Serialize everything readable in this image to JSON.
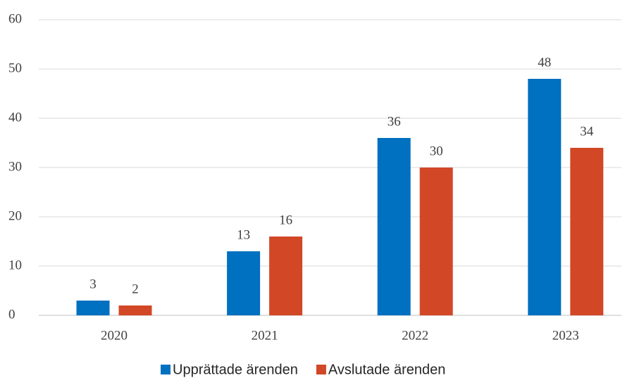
{
  "chart_data": {
    "type": "bar",
    "categories": [
      "2020",
      "2021",
      "2022",
      "2023"
    ],
    "series": [
      {
        "name": "Upprättade ärenden",
        "color": "#0070c0",
        "values": [
          3,
          13,
          36,
          48
        ]
      },
      {
        "name": "Avslutade ärenden",
        "color": "#d24726",
        "values": [
          2,
          16,
          30,
          34
        ]
      }
    ],
    "ylim": [
      0,
      60
    ],
    "yticks": [
      0,
      10,
      20,
      30,
      40,
      50,
      60
    ],
    "grid": true,
    "legend": "bottom"
  }
}
